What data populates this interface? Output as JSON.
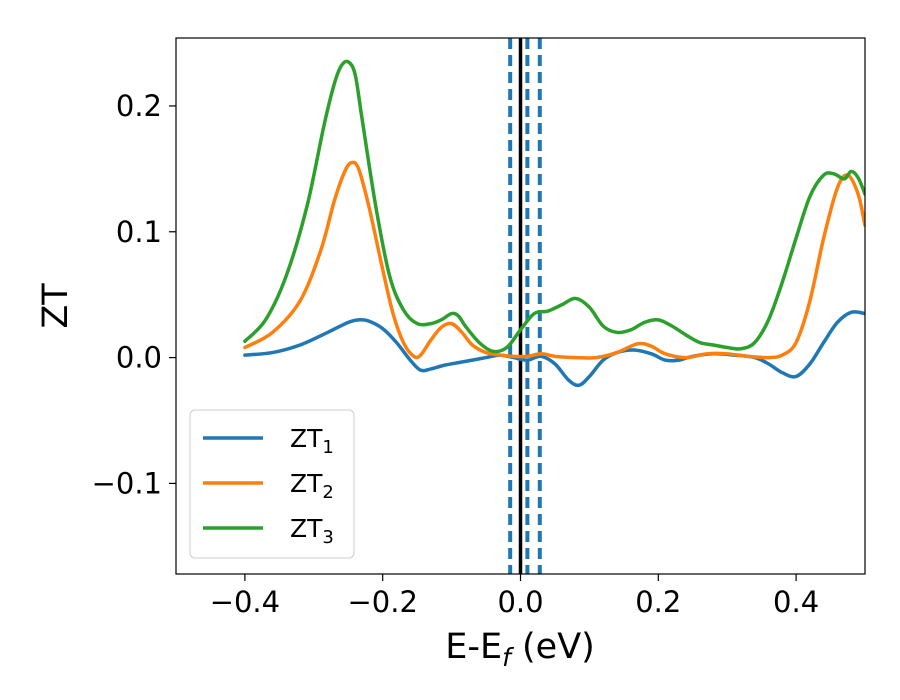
{
  "chart_data": {
    "type": "line",
    "xlabel": {
      "main": "E-E",
      "sub": "f",
      "unit": " (eV)"
    },
    "ylabel": "ZT",
    "xlim": [
      -0.5,
      0.5
    ],
    "ylim": [
      -0.172,
      0.254
    ],
    "xticks": [
      -0.4,
      -0.2,
      0.0,
      0.2,
      0.4
    ],
    "xtick_labels": [
      "−0.4",
      "−0.2",
      "0.0",
      "0.2",
      "0.4"
    ],
    "yticks": [
      -0.1,
      0.0,
      0.1,
      0.2
    ],
    "ytick_labels": [
      "−0.1",
      "0.0",
      "0.1",
      "0.2"
    ],
    "grid": false,
    "legend_position": "lower-left",
    "vlines": [
      {
        "x": -0.015,
        "style": "dashed",
        "color": "#1f77b4"
      },
      {
        "x": 0.0,
        "style": "solid",
        "color": "#000000"
      },
      {
        "x": 0.01,
        "style": "dashed",
        "color": "#1f77b4"
      },
      {
        "x": 0.028,
        "style": "dashed",
        "color": "#1f77b4"
      }
    ],
    "series": [
      {
        "name": "ZT",
        "sub": "1",
        "color": "#1f77b4",
        "x": [
          -0.4,
          -0.36,
          -0.32,
          -0.28,
          -0.25,
          -0.235,
          -0.22,
          -0.2,
          -0.18,
          -0.16,
          -0.145,
          -0.13,
          -0.11,
          -0.09,
          -0.07,
          -0.05,
          -0.03,
          -0.01,
          0.01,
          0.03,
          0.05,
          0.07,
          0.085,
          0.1,
          0.12,
          0.14,
          0.165,
          0.19,
          0.21,
          0.23,
          0.25,
          0.28,
          0.31,
          0.34,
          0.36,
          0.38,
          0.4,
          0.42,
          0.44,
          0.46,
          0.48,
          0.5
        ],
        "y": [
          0.002,
          0.004,
          0.01,
          0.02,
          0.028,
          0.03,
          0.029,
          0.023,
          0.012,
          -0.002,
          -0.01,
          -0.009,
          -0.006,
          -0.004,
          -0.002,
          0.0,
          0.002,
          0.0,
          -0.002,
          0.001,
          -0.005,
          -0.018,
          -0.022,
          -0.015,
          -0.002,
          0.004,
          0.006,
          0.003,
          -0.002,
          -0.002,
          0.001,
          0.003,
          0.002,
          0.0,
          -0.005,
          -0.012,
          -0.015,
          -0.005,
          0.012,
          0.028,
          0.036,
          0.035
        ]
      },
      {
        "name": "ZT",
        "sub": "2",
        "color": "#ff7f0e",
        "x": [
          -0.4,
          -0.36,
          -0.32,
          -0.29,
          -0.27,
          -0.255,
          -0.245,
          -0.235,
          -0.22,
          -0.2,
          -0.185,
          -0.17,
          -0.155,
          -0.145,
          -0.13,
          -0.115,
          -0.1,
          -0.085,
          -0.07,
          -0.05,
          -0.03,
          -0.01,
          0.01,
          0.03,
          0.05,
          0.08,
          0.11,
          0.14,
          0.17,
          0.19,
          0.21,
          0.24,
          0.27,
          0.3,
          0.33,
          0.36,
          0.38,
          0.4,
          0.42,
          0.44,
          0.46,
          0.475,
          0.49,
          0.5
        ],
        "y": [
          0.008,
          0.02,
          0.045,
          0.085,
          0.125,
          0.148,
          0.155,
          0.15,
          0.12,
          0.07,
          0.035,
          0.012,
          0.001,
          0.002,
          0.014,
          0.024,
          0.027,
          0.02,
          0.01,
          0.004,
          0.002,
          0.001,
          0.001,
          0.003,
          0.001,
          0.0,
          0.0,
          0.004,
          0.011,
          0.009,
          0.003,
          0.0,
          0.003,
          0.003,
          0.001,
          0.0,
          0.002,
          0.012,
          0.045,
          0.095,
          0.135,
          0.145,
          0.13,
          0.105
        ]
      },
      {
        "name": "ZT",
        "sub": "3",
        "color": "#2ca02c",
        "x": [
          -0.4,
          -0.37,
          -0.34,
          -0.31,
          -0.285,
          -0.27,
          -0.26,
          -0.25,
          -0.24,
          -0.23,
          -0.21,
          -0.19,
          -0.17,
          -0.15,
          -0.13,
          -0.115,
          -0.1,
          -0.09,
          -0.08,
          -0.06,
          -0.04,
          -0.02,
          0.0,
          0.02,
          0.04,
          0.06,
          0.08,
          0.1,
          0.12,
          0.14,
          0.16,
          0.18,
          0.2,
          0.22,
          0.24,
          0.26,
          0.28,
          0.3,
          0.32,
          0.34,
          0.36,
          0.38,
          0.4,
          0.42,
          0.44,
          0.455,
          0.47,
          0.48,
          0.49,
          0.5
        ],
        "y": [
          0.013,
          0.03,
          0.065,
          0.12,
          0.185,
          0.218,
          0.232,
          0.235,
          0.225,
          0.19,
          0.12,
          0.065,
          0.038,
          0.027,
          0.027,
          0.03,
          0.035,
          0.033,
          0.025,
          0.012,
          0.005,
          0.008,
          0.022,
          0.035,
          0.037,
          0.042,
          0.047,
          0.04,
          0.025,
          0.02,
          0.022,
          0.028,
          0.03,
          0.025,
          0.018,
          0.012,
          0.01,
          0.008,
          0.007,
          0.012,
          0.03,
          0.06,
          0.095,
          0.128,
          0.145,
          0.146,
          0.142,
          0.148,
          0.143,
          0.13
        ]
      }
    ]
  }
}
